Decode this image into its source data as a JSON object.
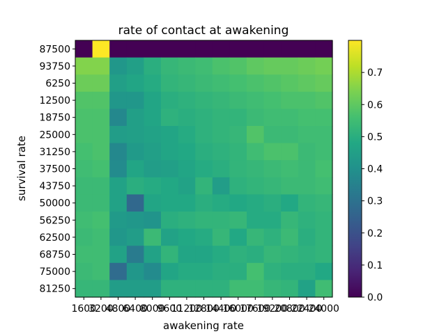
{
  "chart_data": {
    "type": "heatmap",
    "title": "rate of contact at awakening",
    "xlabel": "awakening rate",
    "ylabel": "survival rate",
    "x_categories": [
      "1600",
      "3200",
      "4800",
      "6400",
      "8000",
      "9600",
      "11200",
      "12800",
      "14400",
      "16000",
      "17600",
      "19200",
      "20800",
      "22400",
      "24000"
    ],
    "y_categories": [
      "87500",
      "93750",
      "6250",
      "12500",
      "18750",
      "25000",
      "31250",
      "37500",
      "43750",
      "50000",
      "56250",
      "62500",
      "68750",
      "75000",
      "81250"
    ],
    "values": [
      [
        0.0,
        0.8,
        0.0,
        0.0,
        0.0,
        0.0,
        0.0,
        0.0,
        0.0,
        0.0,
        0.0,
        0.0,
        0.0,
        0.0,
        0.0
      ],
      [
        0.65,
        0.65,
        0.42,
        0.45,
        0.5,
        0.53,
        0.54,
        0.55,
        0.57,
        0.58,
        0.6,
        0.61,
        0.61,
        0.62,
        0.63
      ],
      [
        0.62,
        0.62,
        0.45,
        0.47,
        0.49,
        0.52,
        0.53,
        0.54,
        0.55,
        0.56,
        0.57,
        0.58,
        0.59,
        0.6,
        0.61
      ],
      [
        0.58,
        0.58,
        0.42,
        0.42,
        0.47,
        0.5,
        0.51,
        0.52,
        0.53,
        0.54,
        0.55,
        0.56,
        0.57,
        0.57,
        0.58
      ],
      [
        0.57,
        0.57,
        0.37,
        0.45,
        0.47,
        0.51,
        0.5,
        0.51,
        0.52,
        0.52,
        0.54,
        0.55,
        0.55,
        0.56,
        0.56
      ],
      [
        0.57,
        0.57,
        0.44,
        0.45,
        0.46,
        0.47,
        0.49,
        0.51,
        0.52,
        0.53,
        0.58,
        0.54,
        0.54,
        0.55,
        0.55
      ],
      [
        0.56,
        0.57,
        0.37,
        0.43,
        0.45,
        0.47,
        0.48,
        0.5,
        0.51,
        0.52,
        0.55,
        0.57,
        0.57,
        0.54,
        0.55
      ],
      [
        0.55,
        0.56,
        0.38,
        0.47,
        0.44,
        0.45,
        0.47,
        0.49,
        0.5,
        0.52,
        0.53,
        0.54,
        0.55,
        0.54,
        0.56
      ],
      [
        0.54,
        0.54,
        0.46,
        0.5,
        0.49,
        0.48,
        0.46,
        0.52,
        0.44,
        0.51,
        0.52,
        0.53,
        0.54,
        0.54,
        0.55
      ],
      [
        0.54,
        0.54,
        0.46,
        0.27,
        0.47,
        0.48,
        0.48,
        0.5,
        0.49,
        0.48,
        0.49,
        0.5,
        0.48,
        0.52,
        0.53
      ],
      [
        0.55,
        0.56,
        0.43,
        0.42,
        0.41,
        0.5,
        0.51,
        0.52,
        0.52,
        0.53,
        0.49,
        0.49,
        0.53,
        0.51,
        0.52
      ],
      [
        0.54,
        0.55,
        0.42,
        0.44,
        0.54,
        0.46,
        0.48,
        0.49,
        0.53,
        0.48,
        0.53,
        0.51,
        0.54,
        0.5,
        0.52
      ],
      [
        0.55,
        0.55,
        0.46,
        0.33,
        0.46,
        0.52,
        0.47,
        0.47,
        0.49,
        0.51,
        0.5,
        0.53,
        0.52,
        0.51,
        0.52
      ],
      [
        0.54,
        0.55,
        0.28,
        0.42,
        0.38,
        0.47,
        0.49,
        0.49,
        0.5,
        0.5,
        0.56,
        0.51,
        0.5,
        0.5,
        0.48
      ],
      [
        0.53,
        0.53,
        0.44,
        0.44,
        0.44,
        0.51,
        0.51,
        0.51,
        0.51,
        0.55,
        0.55,
        0.53,
        0.52,
        0.46,
        0.55
      ]
    ],
    "colormap": "viridis",
    "vmin": 0.0,
    "vmax": 0.8,
    "colorbar_ticks": [
      "0.0",
      "0.1",
      "0.2",
      "0.3",
      "0.4",
      "0.5",
      "0.6",
      "0.7"
    ]
  }
}
